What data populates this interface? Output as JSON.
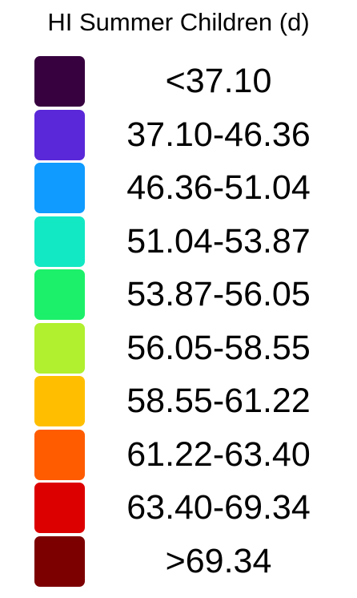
{
  "legend": {
    "title": "HI Summer Children (d)",
    "items": [
      {
        "label": "<37.10",
        "color": "#37003f"
      },
      {
        "label": "37.10-46.36",
        "color": "#5a28d8"
      },
      {
        "label": "46.36-51.04",
        "color": "#0f9bff"
      },
      {
        "label": "51.04-53.87",
        "color": "#12e8c4"
      },
      {
        "label": "53.87-56.05",
        "color": "#1cf06a"
      },
      {
        "label": "56.05-58.55",
        "color": "#b0f02e"
      },
      {
        "label": "58.55-61.22",
        "color": "#ffbf00"
      },
      {
        "label": "61.22-63.40",
        "color": "#ff5c00"
      },
      {
        "label": "63.40-69.34",
        "color": "#dd0000"
      },
      {
        "label": ">69.34",
        "color": "#7d0000"
      }
    ]
  }
}
